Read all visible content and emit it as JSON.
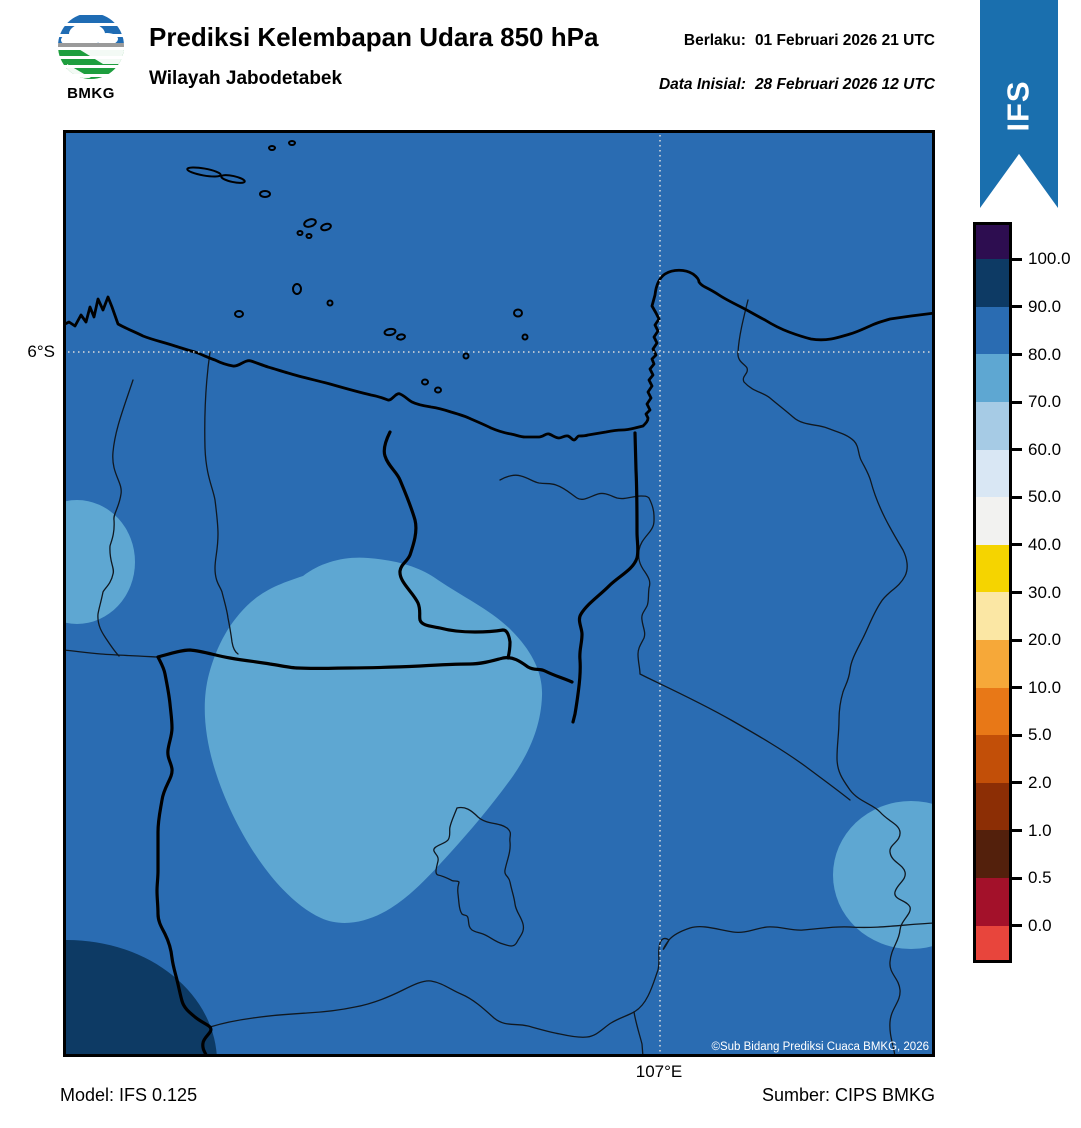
{
  "header": {
    "title": "Prediksi Kelembapan Udara 850 hPa",
    "subtitle": "Wilayah Jabodetabek",
    "valid_label": "Berlaku:",
    "valid_value": "01 Februari 2026 21 UTC",
    "initial_label": "Data Inisial:",
    "initial_value": "28 Februari 2026 12 UTC",
    "logo_text": "BMKG",
    "ribbon_label": "IFS",
    "ribbon_color": "#1a6fae"
  },
  "map": {
    "lat_tick": "6°S",
    "lon_tick": "107°E",
    "copyright": "©Sub Bidang Prediksi Cuaca BMKG, 2026",
    "colors": {
      "base_fill_80_90": "#2a6cb2",
      "patch_70_80": "#5ea7d2",
      "patch_90_100": "#0d3a64",
      "coastline": "#000000",
      "gridline": "#dcdcdc"
    },
    "zones": [
      {
        "name": "background",
        "humidity_range_pct": "80-90"
      },
      {
        "name": "central-patch",
        "humidity_range_pct": "70-80"
      },
      {
        "name": "west-edge-patch",
        "humidity_range_pct": "70-80"
      },
      {
        "name": "southeast-edge-patch",
        "humidity_range_pct": "70-80"
      },
      {
        "name": "southwest-corner-patch",
        "humidity_range_pct": "90-100"
      }
    ]
  },
  "colorbar": {
    "tick_labels": [
      "100.0",
      "90.0",
      "80.0",
      "70.0",
      "60.0",
      "50.0",
      "40.0",
      "30.0",
      "20.0",
      "10.0",
      "5.0",
      "2.0",
      "1.0",
      "0.5",
      "0.0"
    ],
    "segment_colors_top_to_bottom": [
      "#2d0d50",
      "#0d3a64",
      "#2a6cb2",
      "#5ea7d2",
      "#a6cbe5",
      "#d9e7f4",
      "#f2f2f0",
      "#f5d400",
      "#fbe7a4",
      "#f6a839",
      "#e87817",
      "#c24f08",
      "#8c2e05",
      "#53200c",
      "#a3112a",
      "#e8453c"
    ]
  },
  "footer": {
    "model": "Model: IFS 0.125",
    "source": "Sumber: CIPS BMKG"
  }
}
